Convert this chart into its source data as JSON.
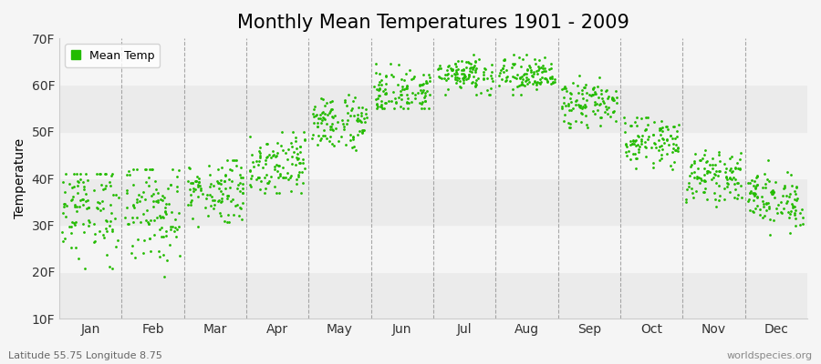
{
  "title": "Monthly Mean Temperatures 1901 - 2009",
  "ylabel": "Temperature",
  "ytick_labels": [
    "10F",
    "20F",
    "30F",
    "40F",
    "50F",
    "60F",
    "70F"
  ],
  "ytick_values": [
    10,
    20,
    30,
    40,
    50,
    60,
    70
  ],
  "ylim": [
    10,
    70
  ],
  "months": [
    "Jan",
    "Feb",
    "Mar",
    "Apr",
    "May",
    "Jun",
    "Jul",
    "Aug",
    "Sep",
    "Oct",
    "Nov",
    "Dec"
  ],
  "dot_color": "#22bb00",
  "dot_size": 4,
  "bg_color": "#f5f5f5",
  "stripe_colors": [
    "#ebebeb",
    "#f5f5f5"
  ],
  "vline_color": "#888888",
  "title_fontsize": 15,
  "axis_fontsize": 10,
  "legend_label": "Mean Temp",
  "bottom_left_text": "Latitude 55.75 Longitude 8.75",
  "bottom_right_text": "worldspecies.org",
  "month_means_F": [
    33.8,
    33.2,
    37.5,
    43.5,
    52.0,
    58.5,
    62.5,
    62.0,
    56.0,
    48.0,
    40.5,
    35.5
  ],
  "month_stds_F": [
    5.5,
    5.8,
    3.5,
    3.5,
    3.0,
    2.5,
    2.0,
    2.0,
    2.5,
    2.5,
    2.5,
    3.0
  ],
  "month_mins_F": [
    20.0,
    19.0,
    29.0,
    37.0,
    46.0,
    55.0,
    58.0,
    58.0,
    51.0,
    42.0,
    34.0,
    26.0
  ],
  "month_maxs_F": [
    41.0,
    42.0,
    44.0,
    50.0,
    58.0,
    65.0,
    68.0,
    67.0,
    62.0,
    53.0,
    47.0,
    44.0
  ],
  "n_years": 109
}
